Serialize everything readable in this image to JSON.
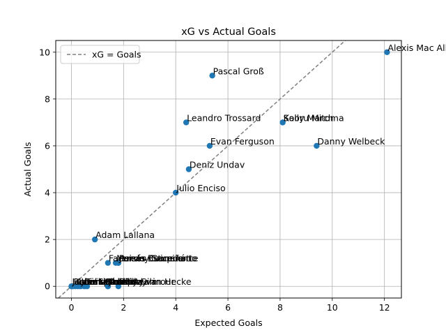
{
  "chart_data": {
    "type": "scatter",
    "title": "xG vs Actual Goals",
    "xlabel": "Expected Goals",
    "ylabel": "Actual Goals",
    "xlim": [
      -0.6,
      12.65
    ],
    "ylim": [
      -0.5,
      10.5
    ],
    "xticks": [
      "0",
      "2",
      "4",
      "6",
      "8",
      "10",
      "12"
    ],
    "yticks": [
      "0",
      "2",
      "4",
      "6",
      "8",
      "10"
    ],
    "grid": true,
    "legend": {
      "position": "top-left",
      "entries": [
        "xG = Goals"
      ]
    },
    "reference_line": {
      "label": "xG = Goals",
      "style": "dashed",
      "color": "#7f7f7f"
    },
    "point_color": "#1f77b4",
    "points": [
      {
        "x": 12.1,
        "y": 10,
        "label": "Alexis Mac Allister"
      },
      {
        "x": 5.4,
        "y": 9,
        "label": "Pascal Groß"
      },
      {
        "x": 4.4,
        "y": 7,
        "label": "Leandro Trossard"
      },
      {
        "x": 8.1,
        "y": 7,
        "label": "Solly March"
      },
      {
        "x": 8.1,
        "y": 7,
        "label": "Kaoru Mitoma"
      },
      {
        "x": 5.3,
        "y": 6,
        "label": "Evan Ferguson"
      },
      {
        "x": 9.4,
        "y": 6,
        "label": "Danny Welbeck"
      },
      {
        "x": 4.5,
        "y": 5,
        "label": "Deniz Undav"
      },
      {
        "x": 4.0,
        "y": 4,
        "label": "Julio Enciso"
      },
      {
        "x": 0.9,
        "y": 2,
        "label": "Adam Lallana"
      },
      {
        "x": 1.4,
        "y": 1,
        "label": "Facundo Buonanotte"
      },
      {
        "x": 1.7,
        "y": 1,
        "label": "Moisés Caicedo"
      },
      {
        "x": 1.8,
        "y": 1,
        "label": "Pervis Estupiñán"
      },
      {
        "x": 1.8,
        "y": 1,
        "label": "Jeremy Sarmiento"
      },
      {
        "x": 0.0,
        "y": 0,
        "label": "Jason Steele"
      },
      {
        "x": 0.05,
        "y": 0,
        "label": "Robert Sánchez"
      },
      {
        "x": 0.15,
        "y": 0,
        "label": "Adam Webster"
      },
      {
        "x": 0.25,
        "y": 0,
        "label": "Lewis Dunk"
      },
      {
        "x": 0.35,
        "y": 0,
        "label": "Joël Veltman"
      },
      {
        "x": 0.5,
        "y": 0,
        "label": "Tariq Lamptey"
      },
      {
        "x": 0.6,
        "y": 0,
        "label": "Levi Colwill"
      },
      {
        "x": 1.4,
        "y": 0,
        "label": "Jan Paul van Hecke"
      },
      {
        "x": 1.8,
        "y": 0,
        "label": "Billy Gilmour"
      },
      {
        "x": 1.4,
        "y": 0,
        "label": "Yasin Ayari"
      }
    ]
  }
}
